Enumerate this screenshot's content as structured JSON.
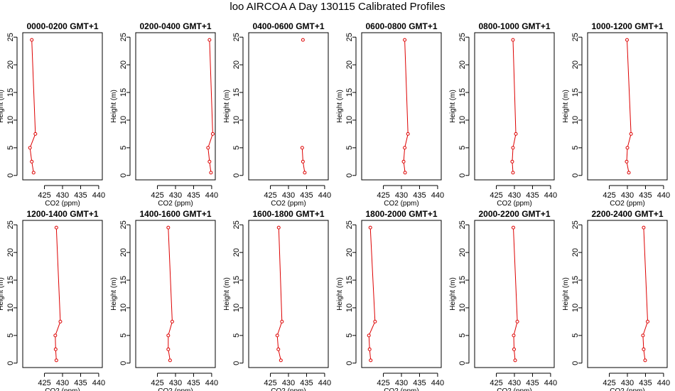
{
  "title": "loo AIRCOA A  Day 130115  Calibrated Profiles",
  "colors": {
    "profile": "#dd0000",
    "axis": "#000000"
  },
  "chart_data": {
    "type": "line",
    "xlabel": "CO2 (ppm)",
    "ylabel": "Height (m)",
    "xlim": [
      419,
      441
    ],
    "ylim": [
      -0.8,
      25.8
    ],
    "xticks": [
      425,
      430,
      435,
      440
    ],
    "yticks": [
      0,
      5,
      10,
      15,
      20,
      25
    ],
    "panels": [
      {
        "title": "0000-0200 GMT+1",
        "points": [
          [
            422.0,
            0.5
          ],
          [
            421.5,
            2.5
          ],
          [
            421.0,
            5.0
          ],
          [
            422.5,
            7.5
          ],
          [
            421.5,
            24.5
          ]
        ]
      },
      {
        "title": "0200-0400 GMT+1",
        "points": [
          [
            439.8,
            0.5
          ],
          [
            439.4,
            2.5
          ],
          [
            439.0,
            5.0
          ],
          [
            440.3,
            7.5
          ],
          [
            439.4,
            24.5
          ]
        ]
      },
      {
        "title": "0400-0600 GMT+1",
        "points": [
          [
            434.5,
            0.5
          ],
          [
            434.0,
            2.5
          ],
          [
            433.8,
            5.0
          ],
          [
            null,
            7.5
          ],
          [
            434.0,
            24.5
          ]
        ]
      },
      {
        "title": "0600-0800 GMT+1",
        "points": [
          [
            431.0,
            0.5
          ],
          [
            430.6,
            2.5
          ],
          [
            430.9,
            5.0
          ],
          [
            431.8,
            7.5
          ],
          [
            430.9,
            24.5
          ]
        ]
      },
      {
        "title": "0800-1000 GMT+1",
        "points": [
          [
            429.6,
            0.5
          ],
          [
            429.4,
            2.5
          ],
          [
            429.6,
            5.0
          ],
          [
            430.4,
            7.5
          ],
          [
            429.6,
            24.5
          ]
        ]
      },
      {
        "title": "1000-1200 GMT+1",
        "points": [
          [
            430.4,
            0.5
          ],
          [
            429.8,
            2.5
          ],
          [
            430.0,
            5.0
          ],
          [
            431.0,
            7.5
          ],
          [
            429.9,
            24.5
          ]
        ]
      },
      {
        "title": "1200-1400 GMT+1",
        "points": [
          [
            428.3,
            0.5
          ],
          [
            428.1,
            2.5
          ],
          [
            428.0,
            5.0
          ],
          [
            429.4,
            7.5
          ],
          [
            428.3,
            24.5
          ]
        ]
      },
      {
        "title": "1400-1600 GMT+1",
        "points": [
          [
            428.5,
            0.5
          ],
          [
            428.0,
            2.5
          ],
          [
            428.0,
            5.0
          ],
          [
            429.1,
            7.5
          ],
          [
            428.0,
            24.5
          ]
        ]
      },
      {
        "title": "1600-1800 GMT+1",
        "points": [
          [
            427.9,
            0.5
          ],
          [
            427.2,
            2.5
          ],
          [
            426.9,
            5.0
          ],
          [
            428.2,
            7.5
          ],
          [
            427.3,
            24.5
          ]
        ]
      },
      {
        "title": "1800-2000 GMT+1",
        "points": [
          [
            421.5,
            0.5
          ],
          [
            421.2,
            2.5
          ],
          [
            421.0,
            5.0
          ],
          [
            422.7,
            7.5
          ],
          [
            421.4,
            24.5
          ]
        ]
      },
      {
        "title": "2000-2200 GMT+1",
        "points": [
          [
            430.2,
            0.5
          ],
          [
            429.9,
            2.5
          ],
          [
            429.8,
            5.0
          ],
          [
            430.8,
            7.5
          ],
          [
            429.7,
            24.5
          ]
        ]
      },
      {
        "title": "2200-2400 GMT+1",
        "points": [
          [
            434.9,
            0.5
          ],
          [
            434.5,
            2.5
          ],
          [
            434.3,
            5.0
          ],
          [
            435.6,
            7.5
          ],
          [
            434.5,
            24.5
          ]
        ]
      }
    ]
  }
}
